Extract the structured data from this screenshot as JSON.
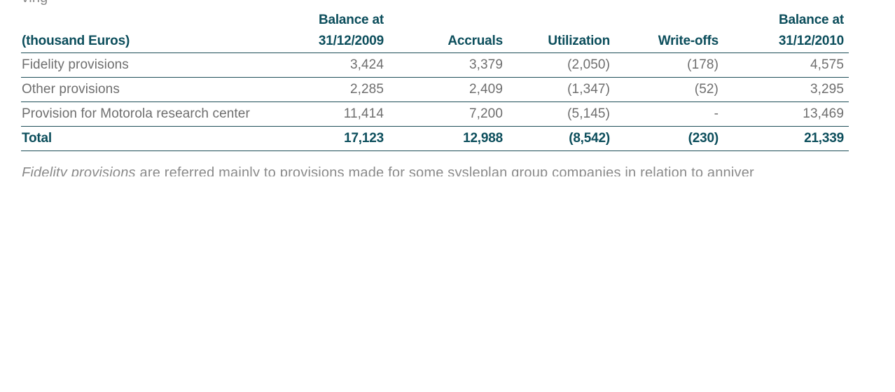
{
  "top_fragment": "ving",
  "table": {
    "headers_row1": [
      "",
      "Balance at",
      "",
      "",
      "",
      "Balance at"
    ],
    "headers_row2": [
      "(thousand Euros)",
      "31/12/2009",
      "Accruals",
      "Utilization",
      "Write-offs",
      "31/12/2010"
    ],
    "rows": [
      [
        "Fidelity provisions",
        "3,424",
        "3,379",
        "(2,050)",
        "(178)",
        "4,575"
      ],
      [
        "Other provisions",
        "2,285",
        "2,409",
        "(1,347)",
        "(52)",
        "3,295"
      ],
      [
        "Provision for Motorola research center",
        "11,414",
        "7,200",
        "(5,145)",
        "-",
        "13,469"
      ]
    ],
    "total": [
      "Total",
      "17,123",
      "12,988",
      "(8,542)",
      "(230)",
      "21,339"
    ]
  },
  "note": {
    "italic": "Fidelity provisions",
    "rest": " are referred mainly to provisions made for some sysleplan group companies in relation to anniver"
  },
  "colors": {
    "header_text": "#0c4e5c",
    "body_text": "#6e6e6e",
    "rule": "#1d4d57"
  }
}
